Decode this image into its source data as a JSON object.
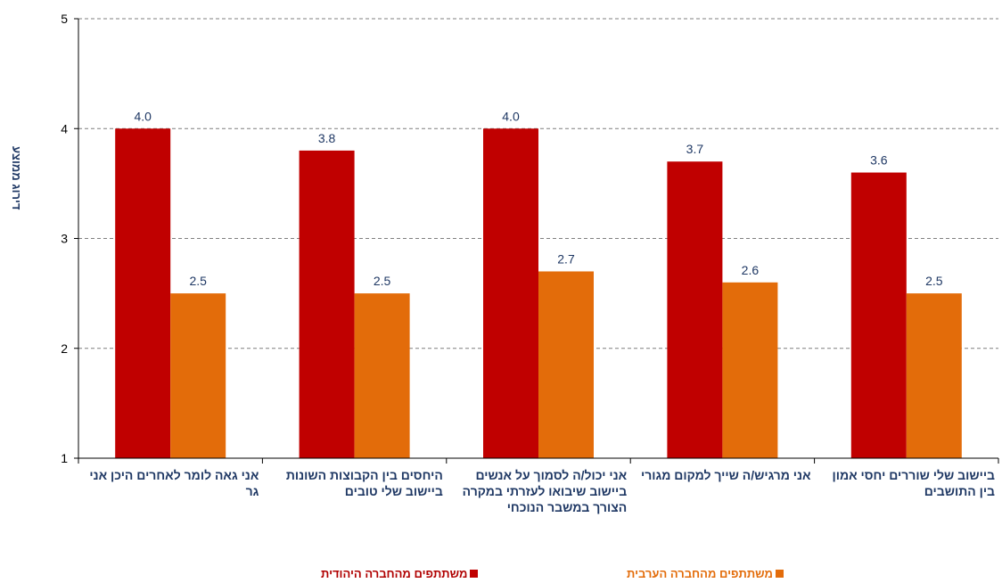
{
  "chart_data": {
    "type": "bar",
    "ylabel": "דירוג ממוצע",
    "ylim": [
      1,
      5
    ],
    "yticks": [
      1,
      2,
      3,
      4,
      5
    ],
    "grid": true,
    "legend_position": "bottom",
    "categories": [
      [
        "אני גאה לומר לאחרים היכן אני",
        "גר"
      ],
      [
        "היחסים בין הקבוצות השונות",
        "ביישוב שלי טובים"
      ],
      [
        "אני יכול/ה לסמוך על אנשים",
        "ביישוב שיבואו לעזרתי במקרה",
        "הצורך במשבר הנוכחי"
      ],
      [
        "אני מרגיש/ה שייך למקום מגורי"
      ],
      [
        "ביישוב שלי שוררים יחסי אמון",
        "בין התושבים"
      ]
    ],
    "series": [
      {
        "name": "משתתפים מהחברה היהודית",
        "color": "#c00000",
        "values": [
          4.0,
          3.8,
          4.0,
          3.7,
          3.6
        ],
        "labels": [
          "4.0",
          "3.8",
          "4.0",
          "3.7",
          "3.6"
        ]
      },
      {
        "name": "משתתפים מהחברה הערבית",
        "color": "#e36c0a",
        "values": [
          2.5,
          2.5,
          2.7,
          2.6,
          2.5
        ],
        "labels": [
          "2.5",
          "2.5",
          "2.7",
          "2.6",
          "2.5"
        ]
      }
    ]
  }
}
